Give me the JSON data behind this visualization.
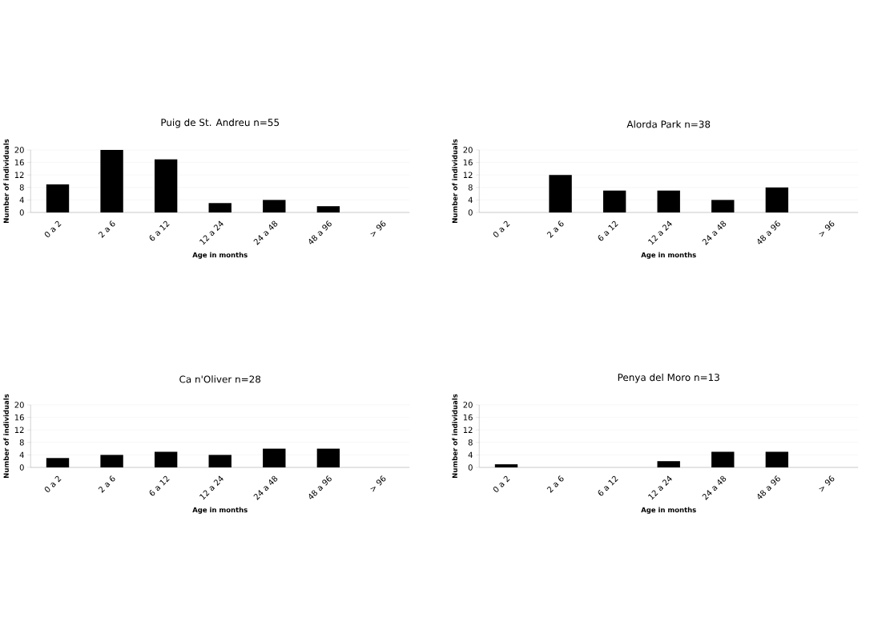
{
  "chart_data": [
    {
      "type": "bar",
      "title": "Puig de St. Andreu n=55",
      "xlabel": "Age in months",
      "ylabel": "Number of individuals",
      "categories": [
        "0 a 2",
        "2 a 6",
        "6 a 12",
        "12 a 24",
        "24 a 48",
        "48 a 96",
        "> 96"
      ],
      "values": [
        9,
        20,
        17,
        3,
        4,
        2,
        0
      ],
      "color": "#000000",
      "ylim": [
        0,
        20
      ],
      "yticks": [
        0,
        4,
        8,
        12,
        16,
        20
      ],
      "grid": "y"
    },
    {
      "type": "bar",
      "title": "Alorda Park n=38",
      "xlabel": "Age in months",
      "ylabel": "Number of individuals",
      "categories": [
        "0 a 2",
        "2 a 6",
        "6 a 12",
        "12 a 24",
        "24 a 48",
        "48 a 96",
        "> 96"
      ],
      "values": [
        0,
        12,
        7,
        7,
        4,
        8,
        0
      ],
      "color": "#000000",
      "ylim": [
        0,
        20
      ],
      "yticks": [
        0,
        4,
        8,
        12,
        16,
        20
      ],
      "grid": "y"
    },
    {
      "type": "bar",
      "title": "Ca n'Oliver n=28",
      "xlabel": "Age in months",
      "ylabel": "Number of individuals",
      "categories": [
        "0 a 2",
        "2 a 6",
        "6 a 12",
        "12 a 24",
        "24 a 48",
        "48 a 96",
        "> 96"
      ],
      "values": [
        3,
        4,
        5,
        4,
        6,
        6,
        0
      ],
      "color": "#000000",
      "ylim": [
        0,
        20
      ],
      "yticks": [
        0,
        4,
        8,
        12,
        16,
        20
      ],
      "grid": "y"
    },
    {
      "type": "bar",
      "title": "Penya del Moro n=13",
      "xlabel": "Age in months",
      "ylabel": "Number of individuals",
      "categories": [
        "0 a 2",
        "2 a 6",
        "6 a 12",
        "12 a 24",
        "24 a 48",
        "48 a 96",
        "> 96"
      ],
      "values": [
        1,
        0,
        0,
        2,
        5,
        5,
        0
      ],
      "color": "#000000",
      "ylim": [
        0,
        20
      ],
      "yticks": [
        0,
        4,
        8,
        12,
        16,
        20
      ],
      "grid": "y"
    }
  ]
}
